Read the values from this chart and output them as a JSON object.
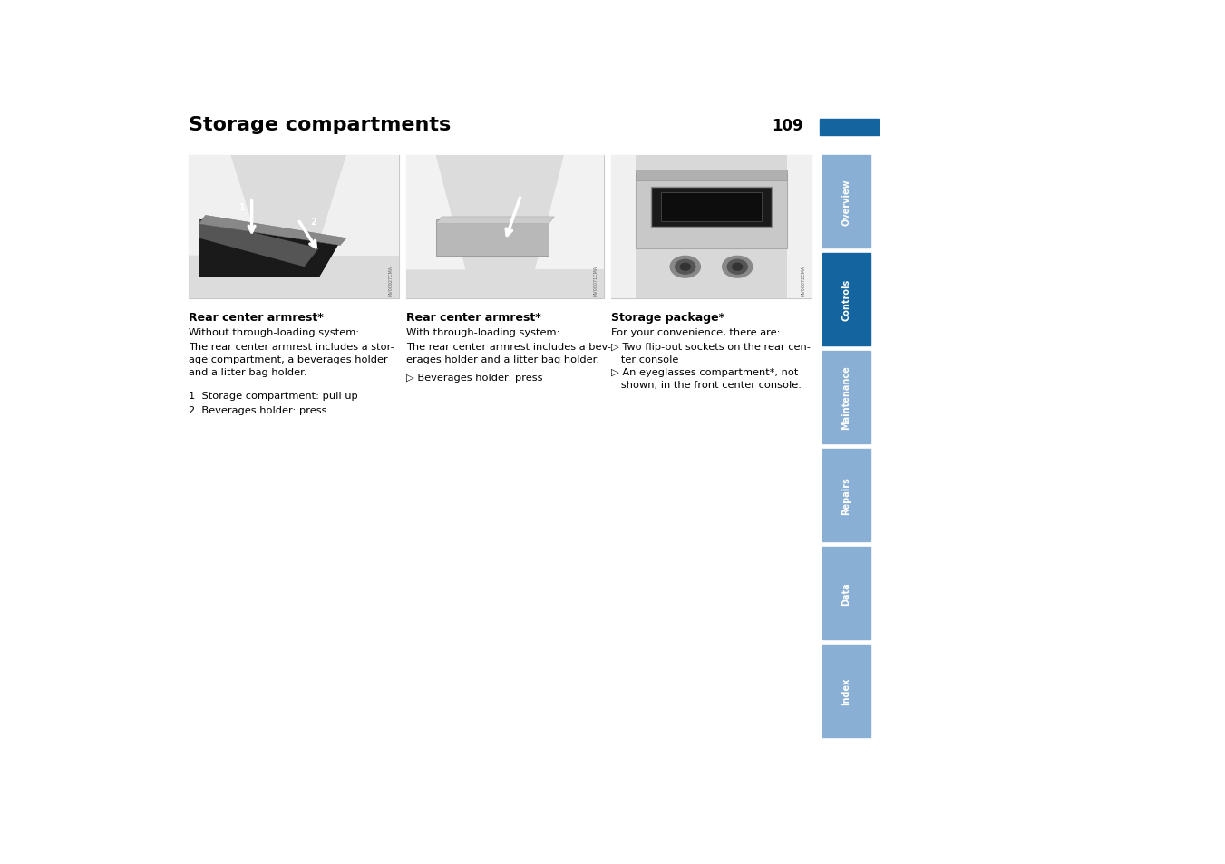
{
  "title": "Storage compartments",
  "page_number": "109",
  "background_color": "#ffffff",
  "title_fontsize": 16,
  "page_num_fontsize": 12,
  "blue_bar_color": "#1464a0",
  "light_blue_color": "#8aafd4",
  "sidebar_labels": [
    "Overview",
    "Controls",
    "Maintenance",
    "Repairs",
    "Data",
    "Index"
  ],
  "sidebar_active": "Controls",
  "caption1_bold": "Rear center armrest*",
  "caption1_sub1": "Without through-loading system:",
  "caption1_sub2": "The rear center armrest includes a stor-\nage compartment, a beverages holder\nand a litter bag holder.",
  "caption1_list": "1  Storage compartment: pull up\n2  Beverages holder: press",
  "caption2_bold": "Rear center armrest*",
  "caption2_sub1": "With through-loading system:",
  "caption2_sub2": "The rear center armrest includes a bev-\nerages holder and a litter bag holder.",
  "caption2_sub3": "▷ Beverages holder: press",
  "caption3_bold": "Storage package*",
  "caption3_sub1": "For your convenience, there are:",
  "caption3_sub2": "▷ Two flip-out sockets on the rear cen-\n   ter console\n▷ An eyeglasses compartment*, not\n   shown, in the front center console.",
  "watermark1": "MV00927CMA",
  "watermark2": "MV00071CMA",
  "watermark3": "MV00072CMA",
  "text_fontsize": 8.2,
  "caption_bold_fontsize": 9.0
}
